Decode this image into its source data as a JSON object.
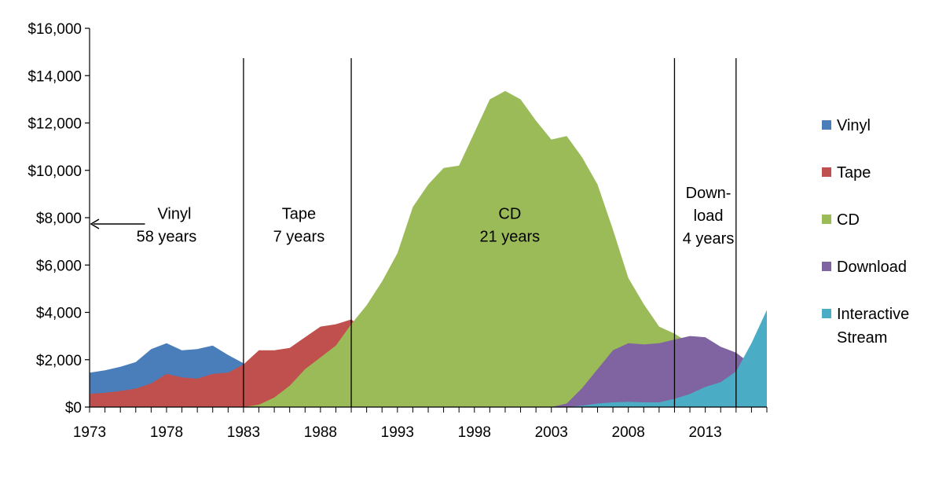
{
  "chart_data": {
    "type": "area",
    "title": "",
    "xlabel": "",
    "ylabel": "",
    "xlim": [
      1973,
      2017
    ],
    "ylim": [
      0,
      16000
    ],
    "grid": false,
    "legend_position": "right",
    "y_ticks": [
      {
        "value": 0,
        "label": "$0"
      },
      {
        "value": 2000,
        "label": "$2,000"
      },
      {
        "value": 4000,
        "label": "$4,000"
      },
      {
        "value": 6000,
        "label": "$6,000"
      },
      {
        "value": 8000,
        "label": "$8,000"
      },
      {
        "value": 10000,
        "label": "$10,000"
      },
      {
        "value": 12000,
        "label": "$12,000"
      },
      {
        "value": 14000,
        "label": "$14,000"
      },
      {
        "value": 16000,
        "label": "$16,000"
      }
    ],
    "x_ticks": [
      {
        "value": 1973,
        "label": "1973"
      },
      {
        "value": 1978,
        "label": "1978"
      },
      {
        "value": 1983,
        "label": "1983"
      },
      {
        "value": 1988,
        "label": "1988"
      },
      {
        "value": 1993,
        "label": "1993"
      },
      {
        "value": 1998,
        "label": "1998"
      },
      {
        "value": 2003,
        "label": "2003"
      },
      {
        "value": 2008,
        "label": "2008"
      },
      {
        "value": 2013,
        "label": "2013"
      }
    ],
    "series": [
      {
        "name": "Vinyl",
        "color": "#4a7ebb",
        "points": [
          [
            1973,
            1450
          ],
          [
            1974,
            1550
          ],
          [
            1975,
            1700
          ],
          [
            1976,
            1900
          ],
          [
            1977,
            2450
          ],
          [
            1978,
            2700
          ],
          [
            1979,
            2400
          ],
          [
            1980,
            2450
          ],
          [
            1981,
            2600
          ],
          [
            1982,
            2200
          ],
          [
            1983,
            1850
          ],
          [
            1984,
            1000
          ],
          [
            1985,
            300
          ],
          [
            1986,
            0
          ]
        ]
      },
      {
        "name": "Tape",
        "color": "#c0504d",
        "points": [
          [
            1973,
            560
          ],
          [
            1974,
            600
          ],
          [
            1975,
            680
          ],
          [
            1976,
            780
          ],
          [
            1977,
            1000
          ],
          [
            1978,
            1400
          ],
          [
            1979,
            1250
          ],
          [
            1980,
            1200
          ],
          [
            1981,
            1400
          ],
          [
            1982,
            1450
          ],
          [
            1983,
            1800
          ],
          [
            1984,
            2400
          ],
          [
            1985,
            2400
          ],
          [
            1986,
            2500
          ],
          [
            1987,
            2950
          ],
          [
            1988,
            3400
          ],
          [
            1989,
            3500
          ],
          [
            1990,
            3700
          ],
          [
            1991,
            3200
          ],
          [
            1992,
            2500
          ],
          [
            1993,
            1500
          ],
          [
            1994,
            500
          ],
          [
            1995,
            0
          ]
        ]
      },
      {
        "name": "CD",
        "color": "#9bbb59",
        "points": [
          [
            1983,
            0
          ],
          [
            1984,
            100
          ],
          [
            1985,
            400
          ],
          [
            1986,
            900
          ],
          [
            1987,
            1600
          ],
          [
            1988,
            2100
          ],
          [
            1989,
            2600
          ],
          [
            1990,
            3500
          ],
          [
            1991,
            4300
          ],
          [
            1992,
            5300
          ],
          [
            1993,
            6500
          ],
          [
            1994,
            8450
          ],
          [
            1995,
            9400
          ],
          [
            1996,
            10100
          ],
          [
            1997,
            10200
          ],
          [
            1998,
            11600
          ],
          [
            1999,
            13000
          ],
          [
            2000,
            13350
          ],
          [
            2001,
            13000
          ],
          [
            2002,
            12100
          ],
          [
            2003,
            11300
          ],
          [
            2004,
            11450
          ],
          [
            2005,
            10550
          ],
          [
            2006,
            9400
          ],
          [
            2007,
            7500
          ],
          [
            2008,
            5450
          ],
          [
            2009,
            4350
          ],
          [
            2010,
            3400
          ],
          [
            2011,
            3100
          ],
          [
            2012,
            2700
          ],
          [
            2013,
            2200
          ],
          [
            2014,
            1600
          ],
          [
            2015,
            1000
          ],
          [
            2016,
            500
          ],
          [
            2017,
            300
          ]
        ]
      },
      {
        "name": "Download",
        "color": "#8064a2",
        "points": [
          [
            2003,
            0
          ],
          [
            2004,
            150
          ],
          [
            2005,
            800
          ],
          [
            2006,
            1600
          ],
          [
            2007,
            2400
          ],
          [
            2008,
            2700
          ],
          [
            2009,
            2650
          ],
          [
            2010,
            2700
          ],
          [
            2011,
            2850
          ],
          [
            2012,
            3000
          ],
          [
            2013,
            2950
          ],
          [
            2014,
            2550
          ],
          [
            2015,
            2300
          ],
          [
            2016,
            1800
          ],
          [
            2017,
            1300
          ]
        ]
      },
      {
        "name": "Interactive Stream",
        "color": "#4bacc6",
        "points": [
          [
            2004,
            0
          ],
          [
            2005,
            60
          ],
          [
            2006,
            150
          ],
          [
            2007,
            200
          ],
          [
            2008,
            220
          ],
          [
            2009,
            200
          ],
          [
            2010,
            200
          ],
          [
            2011,
            350
          ],
          [
            2012,
            550
          ],
          [
            2013,
            850
          ],
          [
            2014,
            1050
          ],
          [
            2015,
            1500
          ],
          [
            2016,
            2700
          ],
          [
            2017,
            4100
          ]
        ]
      }
    ],
    "era_lines": [
      1983,
      1990,
      2011,
      2015
    ],
    "legend": [
      {
        "lines": [
          "Vinyl"
        ],
        "color": "#4a7ebb"
      },
      {
        "lines": [
          "Tape"
        ],
        "color": "#c0504d"
      },
      {
        "lines": [
          "CD"
        ],
        "color": "#9bbb59"
      },
      {
        "lines": [
          "Download"
        ],
        "color": "#8064a2"
      },
      {
        "lines": [
          "Interactive",
          "Stream"
        ],
        "color": "#4bacc6"
      }
    ],
    "annotations": [
      {
        "lines": [
          "Vinyl",
          "58 years"
        ],
        "at_year": 1978,
        "at_value": 7700,
        "align": "middle"
      },
      {
        "lines": [
          "Tape",
          "7 years"
        ],
        "at_year": 1986.6,
        "at_value": 7700,
        "align": "middle"
      },
      {
        "lines": [
          "CD",
          "21 years"
        ],
        "at_year": 2000.3,
        "at_value": 7700,
        "align": "middle"
      },
      {
        "lines": [
          "Down-",
          "load",
          "4 years"
        ],
        "at_year": 2013.2,
        "at_value": 8100,
        "align": "middle"
      }
    ],
    "arrow": {
      "from_year": 1976.6,
      "to_year": 1973.1,
      "value": 7700
    }
  }
}
